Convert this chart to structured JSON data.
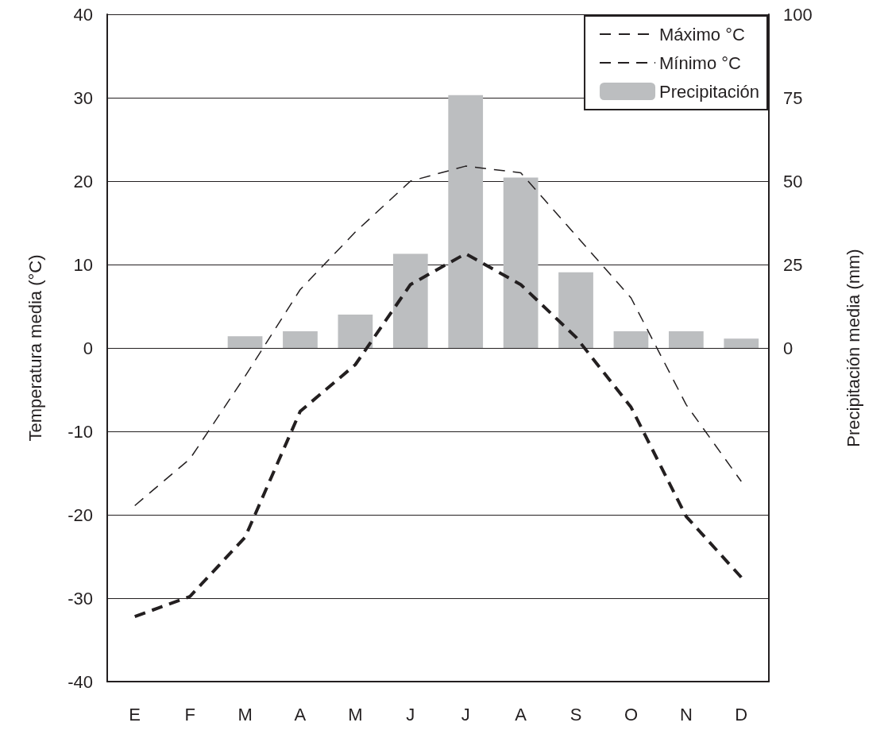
{
  "chart_data": {
    "type": "line",
    "categories": [
      "E",
      "F",
      "M",
      "A",
      "M",
      "J",
      "J",
      "A",
      "S",
      "O",
      "N",
      "D"
    ],
    "ylabel": "Temperatura media (°C)",
    "y2label": "Precipitación media (mm)",
    "series": [
      {
        "name": "Máximo °C",
        "color": "#231f20",
        "line_style": "dashed",
        "values": [
          -18.9,
          -13.3,
          -3.4,
          7.0,
          13.9,
          20.0,
          21.8,
          21.0,
          13.5,
          6.0,
          -6.8,
          -16.0
        ]
      },
      {
        "name": "Mínimo °C",
        "color": "#231f20",
        "line_style": "dashed",
        "values": [
          -32.2,
          -29.8,
          -22.7,
          -7.6,
          -2.0,
          7.6,
          11.3,
          7.6,
          1.3,
          -7.1,
          -20.2,
          -27.5
        ]
      },
      {
        "name": "Precipitación",
        "type": "bar",
        "axis": "y2",
        "color": "#bcbec0",
        "values": [
          0,
          0,
          3.5,
          5.0,
          10.0,
          28.2,
          75.8,
          51.1,
          22.7,
          5.0,
          5.0,
          2.8
        ]
      }
    ],
    "ylim": [
      -40,
      40
    ],
    "yticks": [
      -40,
      -30,
      -20,
      -10,
      0,
      10,
      20,
      30,
      40
    ],
    "y2lim": [
      -100,
      100
    ],
    "y2ticks": [
      0,
      25,
      50,
      75,
      100
    ],
    "grid": "y",
    "legend": "top right",
    "marker": "none"
  }
}
